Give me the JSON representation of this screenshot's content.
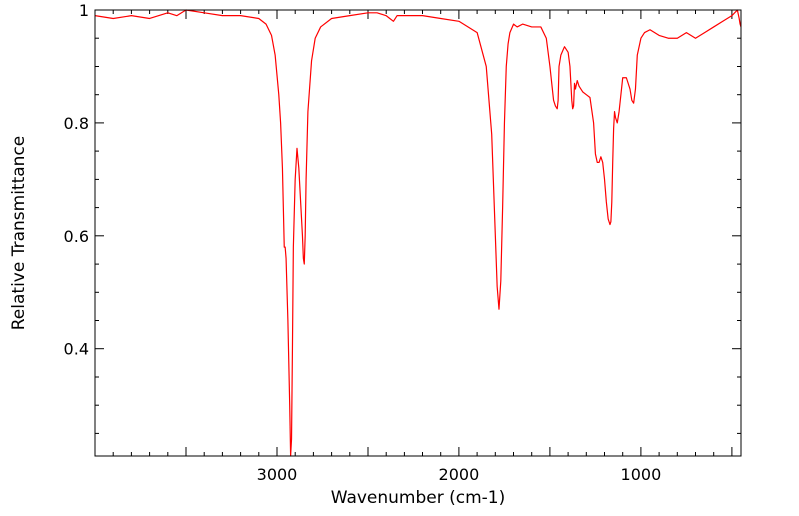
{
  "chart_data": {
    "type": "line",
    "title": "",
    "xlabel": "Wavenumber (cm-1)",
    "ylabel": "Relative Transmittance",
    "xlim": [
      4000,
      450
    ],
    "ylim": [
      0.21,
      1.0
    ],
    "x_axis_reversed": true,
    "grid": false,
    "legend": "none",
    "x_ticks": [
      {
        "value": 3000,
        "label": "3000"
      },
      {
        "value": 2000,
        "label": "2000"
      },
      {
        "value": 1000,
        "label": "1000"
      }
    ],
    "y_ticks": [
      {
        "value": 1.0,
        "label": "1"
      },
      {
        "value": 0.8,
        "label": "0.8"
      },
      {
        "value": 0.6,
        "label": "0.6"
      },
      {
        "value": 0.4,
        "label": "0.4"
      }
    ],
    "series": [
      {
        "color": "#ff0000",
        "x": [
          4000,
          3900,
          3800,
          3700,
          3600,
          3550,
          3500,
          3400,
          3300,
          3200,
          3100,
          3060,
          3030,
          3010,
          2990,
          2980,
          2970,
          2965,
          2960,
          2955,
          2950,
          2940,
          2930,
          2925,
          2920,
          2915,
          2910,
          2900,
          2890,
          2880,
          2870,
          2860,
          2855,
          2850,
          2845,
          2840,
          2830,
          2810,
          2790,
          2760,
          2700,
          2600,
          2500,
          2450,
          2400,
          2380,
          2360,
          2340,
          2300,
          2200,
          2100,
          2000,
          1900,
          1850,
          1820,
          1800,
          1790,
          1780,
          1770,
          1760,
          1750,
          1740,
          1730,
          1720,
          1700,
          1680,
          1650,
          1600,
          1550,
          1520,
          1500,
          1480,
          1470,
          1460,
          1455,
          1450,
          1440,
          1420,
          1400,
          1390,
          1380,
          1375,
          1370,
          1365,
          1360,
          1350,
          1340,
          1320,
          1300,
          1280,
          1260,
          1250,
          1240,
          1230,
          1220,
          1210,
          1200,
          1190,
          1180,
          1170,
          1165,
          1160,
          1155,
          1150,
          1145,
          1140,
          1130,
          1120,
          1110,
          1100,
          1080,
          1060,
          1050,
          1040,
          1030,
          1020,
          1000,
          980,
          950,
          900,
          850,
          800,
          750,
          700,
          650,
          600,
          550,
          500,
          470,
          460,
          455,
          450
        ],
        "y": [
          0.99,
          0.985,
          0.99,
          0.985,
          0.995,
          0.99,
          1.0,
          0.995,
          0.99,
          0.99,
          0.985,
          0.975,
          0.955,
          0.92,
          0.85,
          0.8,
          0.72,
          0.65,
          0.58,
          0.58,
          0.56,
          0.45,
          0.3,
          0.21,
          0.24,
          0.4,
          0.58,
          0.7,
          0.755,
          0.72,
          0.66,
          0.6,
          0.56,
          0.55,
          0.6,
          0.7,
          0.82,
          0.91,
          0.95,
          0.97,
          0.985,
          0.99,
          0.995,
          0.995,
          0.99,
          0.985,
          0.98,
          0.99,
          0.99,
          0.99,
          0.985,
          0.98,
          0.96,
          0.9,
          0.78,
          0.6,
          0.51,
          0.47,
          0.52,
          0.65,
          0.8,
          0.9,
          0.94,
          0.96,
          0.975,
          0.97,
          0.975,
          0.97,
          0.97,
          0.95,
          0.9,
          0.84,
          0.83,
          0.825,
          0.84,
          0.9,
          0.92,
          0.935,
          0.925,
          0.9,
          0.84,
          0.825,
          0.83,
          0.87,
          0.86,
          0.875,
          0.865,
          0.855,
          0.85,
          0.845,
          0.8,
          0.745,
          0.73,
          0.73,
          0.74,
          0.73,
          0.7,
          0.66,
          0.63,
          0.62,
          0.625,
          0.66,
          0.73,
          0.79,
          0.82,
          0.81,
          0.8,
          0.82,
          0.85,
          0.88,
          0.88,
          0.86,
          0.84,
          0.835,
          0.86,
          0.92,
          0.95,
          0.96,
          0.965,
          0.955,
          0.95,
          0.95,
          0.96,
          0.95,
          0.96,
          0.97,
          0.98,
          0.99,
          1.0,
          0.985,
          0.975,
          0.97
        ]
      }
    ]
  }
}
